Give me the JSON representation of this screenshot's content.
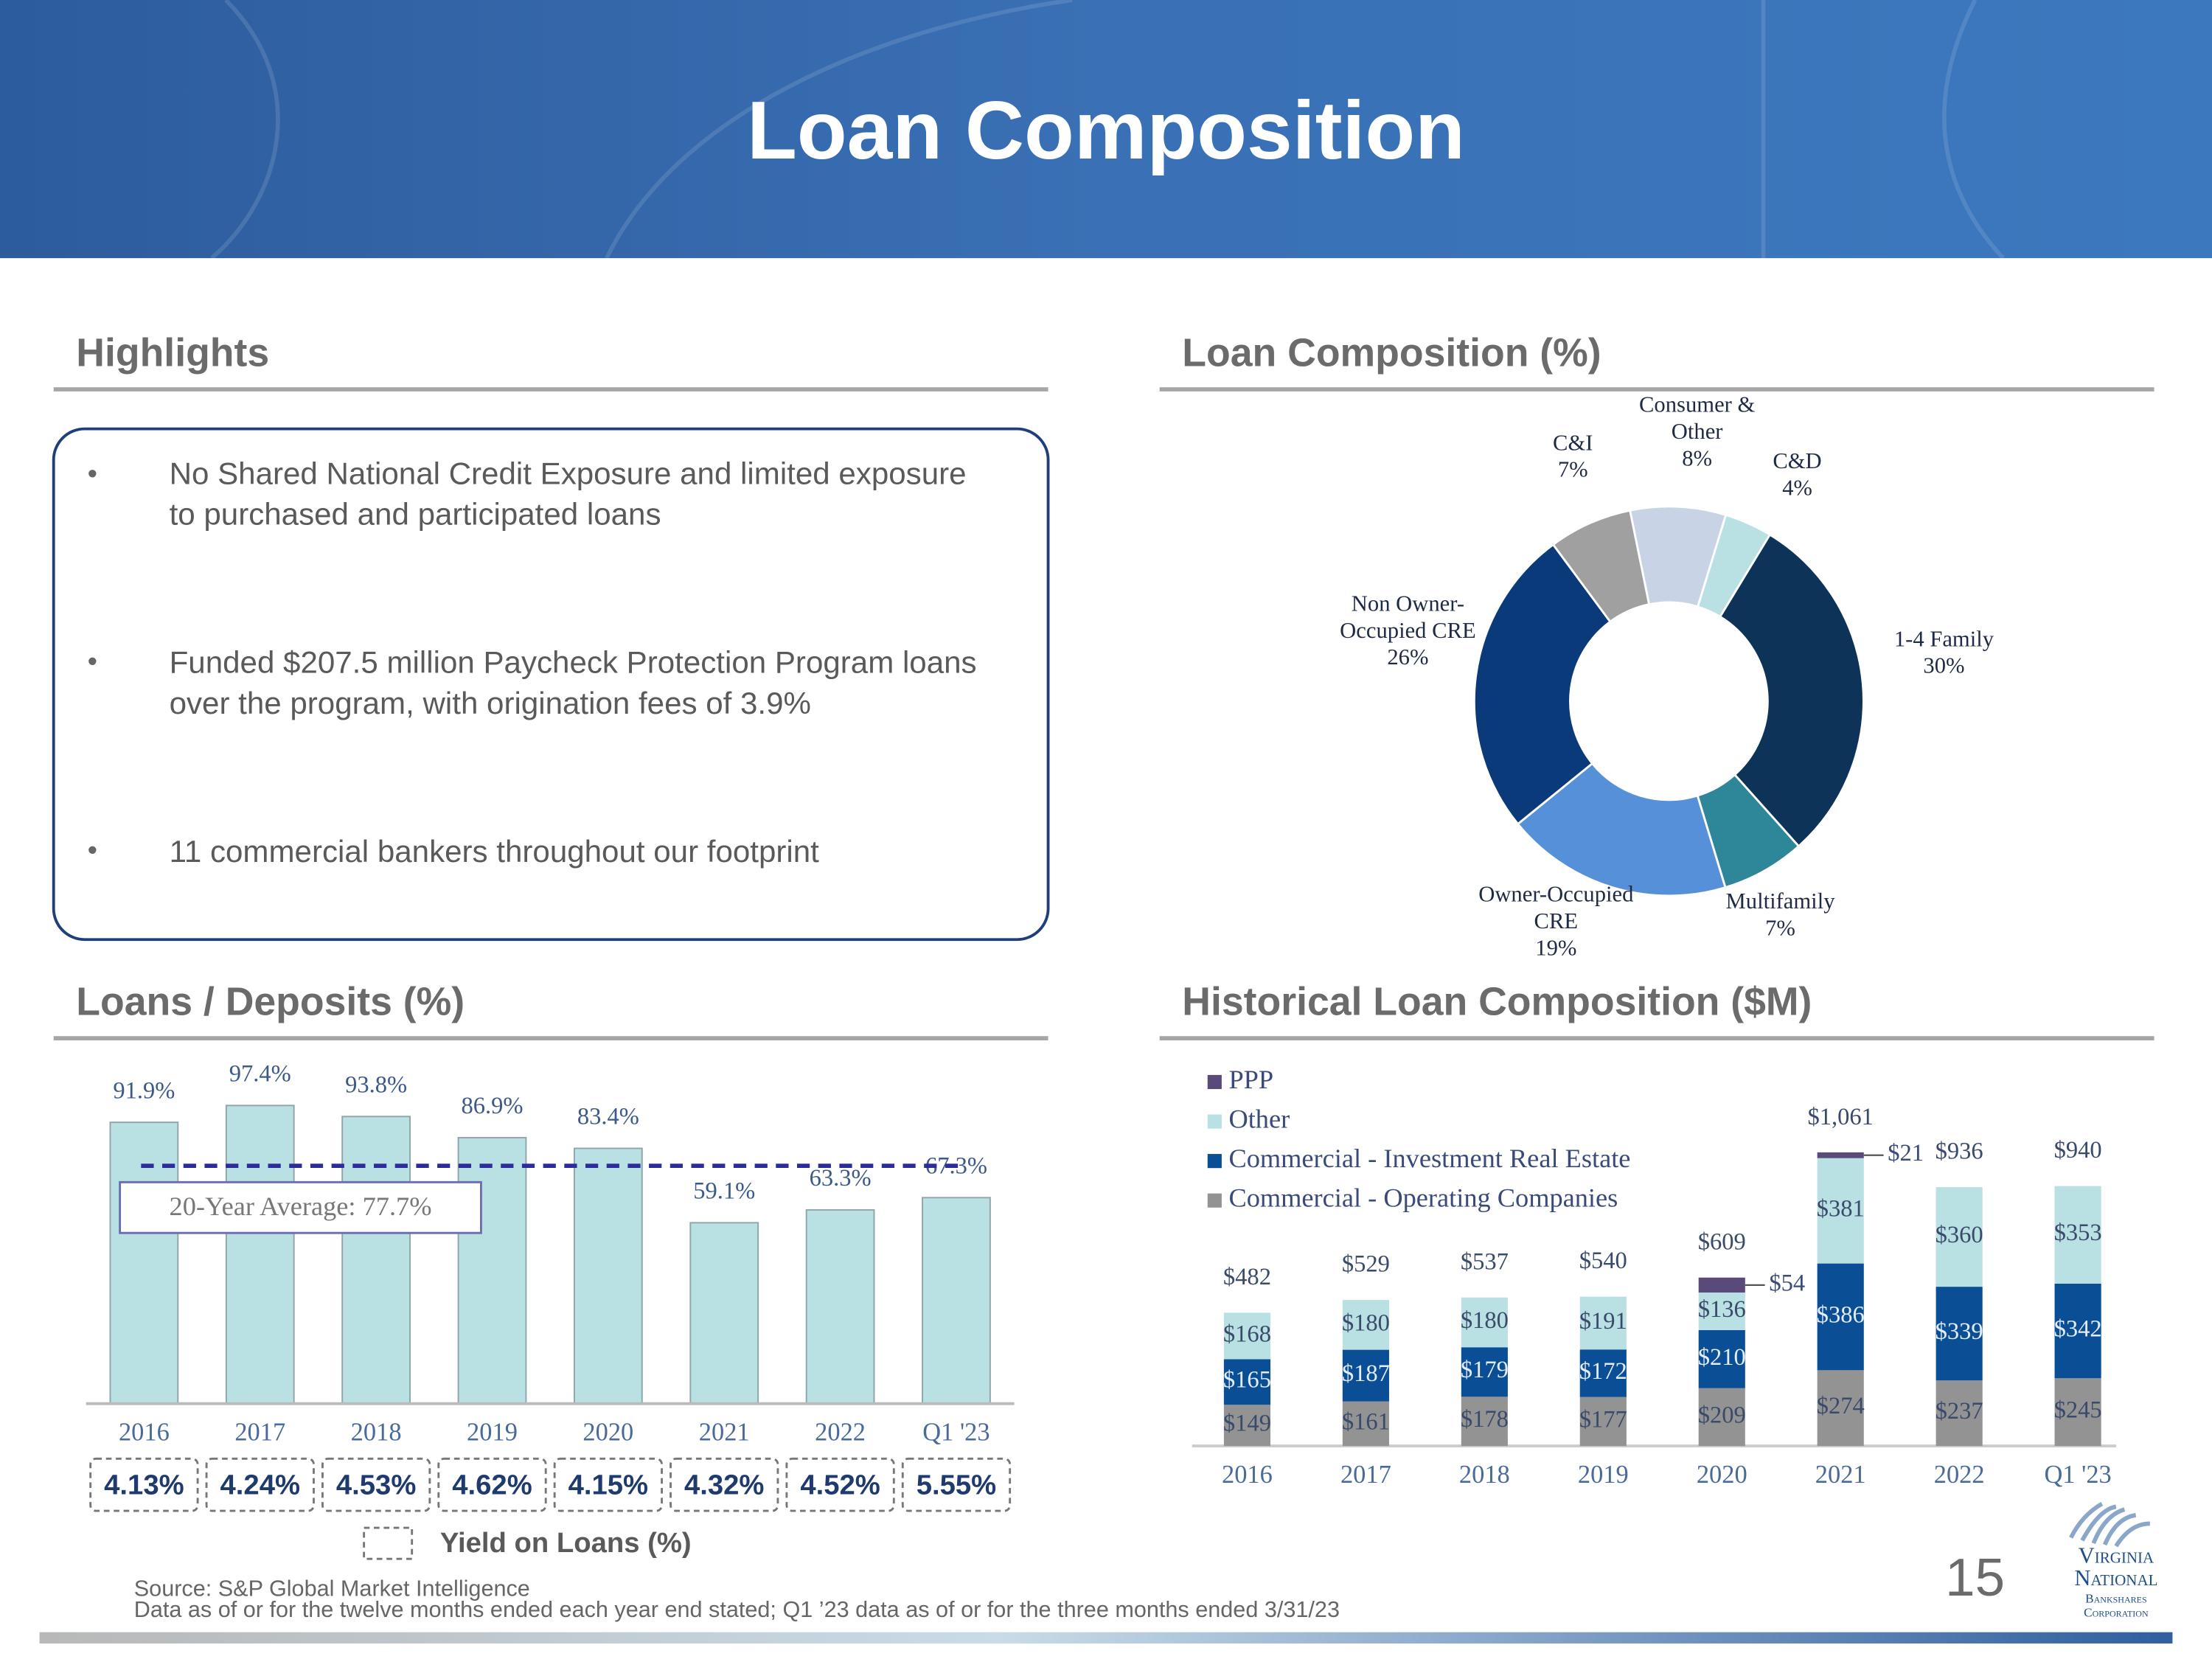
{
  "header": {
    "title": "Loan Composition"
  },
  "highlights": {
    "title": "Highlights",
    "bullets": [
      "No Shared National Credit Exposure and limited exposure to purchased and participated loans",
      "Funded $207.5 million Paycheck Protection Program loans over the program, with origination fees of 3.9%",
      "11 commercial bankers throughout our footprint"
    ]
  },
  "chart_data": [
    {
      "type": "donut",
      "title": "Loan Composition (%)",
      "categories": [
        "C&D",
        "1-4 Family",
        "Multifamily",
        "Owner-Occupied CRE",
        "Non Owner-Occupied CRE",
        "C&I",
        "Consumer & Other"
      ],
      "values": [
        4,
        30,
        7,
        19,
        26,
        7,
        8
      ],
      "value_labels": [
        "4%",
        "30%",
        "7%",
        "19%",
        "26%",
        "7%",
        "8%"
      ],
      "colors": [
        "#b9e0e2",
        "#0d3358",
        "#2e8799",
        "#5590d9",
        "#0b3a7a",
        "#a0a0a0",
        "#c8d3e6"
      ]
    },
    {
      "type": "bar",
      "title": "Loans / Deposits (%)",
      "categories": [
        "2016",
        "2017",
        "2018",
        "2019",
        "2020",
        "2021",
        "2022",
        "Q1 '23"
      ],
      "values": [
        91.9,
        97.4,
        93.8,
        86.9,
        83.4,
        59.1,
        63.3,
        67.3
      ],
      "value_labels": [
        "91.9%",
        "97.4%",
        "93.8%",
        "86.9%",
        "83.4%",
        "59.1%",
        "63.3%",
        "67.3%"
      ],
      "color": "#b9e0e2",
      "ylim": [
        0,
        100
      ],
      "average": {
        "label": "20-Year Average: 77.7%",
        "value": 77.7
      },
      "yield": {
        "name": "Yield on Loans (%)",
        "values": [
          4.13,
          4.24,
          4.53,
          4.62,
          4.15,
          4.32,
          4.52,
          5.55
        ],
        "value_labels": [
          "4.13%",
          "4.24%",
          "4.53%",
          "4.62%",
          "4.15%",
          "4.32%",
          "4.52%",
          "5.55%"
        ]
      }
    },
    {
      "type": "bar",
      "stacked": true,
      "title": "Historical Loan Composition ($M)",
      "categories": [
        "2016",
        "2017",
        "2018",
        "2019",
        "2020",
        "2021",
        "2022",
        "Q1 '23"
      ],
      "ylim": [
        0,
        1100
      ],
      "series": [
        {
          "name": "PPP",
          "color": "#5a4a7a",
          "values": [
            null,
            null,
            null,
            null,
            54,
            21,
            null,
            null
          ],
          "value_labels": [
            null,
            null,
            null,
            null,
            "$54",
            "$21",
            null,
            null
          ]
        },
        {
          "name": "Other",
          "color": "#b9e0e2",
          "values": [
            168,
            180,
            180,
            191,
            136,
            381,
            360,
            353
          ],
          "value_labels": [
            "$168",
            "$180",
            "$180",
            "$191",
            "$136",
            "$381",
            "$360",
            "$353"
          ]
        },
        {
          "name": "Commercial - Investment Real Estate",
          "color": "#0a4f96",
          "values": [
            165,
            187,
            179,
            172,
            210,
            386,
            339,
            342
          ],
          "value_labels": [
            "$165",
            "$187",
            "$179",
            "$172",
            "$210",
            "$386",
            "$339",
            "$342"
          ]
        },
        {
          "name": "Commercial - Operating Companies",
          "color": "#939393",
          "values": [
            149,
            161,
            178,
            177,
            209,
            274,
            237,
            245
          ],
          "value_labels": [
            "$149",
            "$161",
            "$178",
            "$177",
            "$209",
            "$274",
            "$237",
            "$245"
          ]
        }
      ],
      "totals": {
        "values": [
          482,
          529,
          537,
          540,
          609,
          1061,
          936,
          940
        ],
        "value_labels": [
          "$482",
          "$529",
          "$537",
          "$540",
          "$609",
          "$1,061",
          "$936",
          "$940"
        ]
      }
    }
  ],
  "footer": {
    "source": "Source: S&P Global Market Intelligence",
    "note": "Data as of or for the twelve months ended each year end stated; Q1 ’23 data as of or for the three months ended 3/31/23",
    "page_number": 15
  },
  "logo": {
    "lines": [
      "Virginia",
      "National",
      "Bankshares",
      "Corporation"
    ]
  }
}
